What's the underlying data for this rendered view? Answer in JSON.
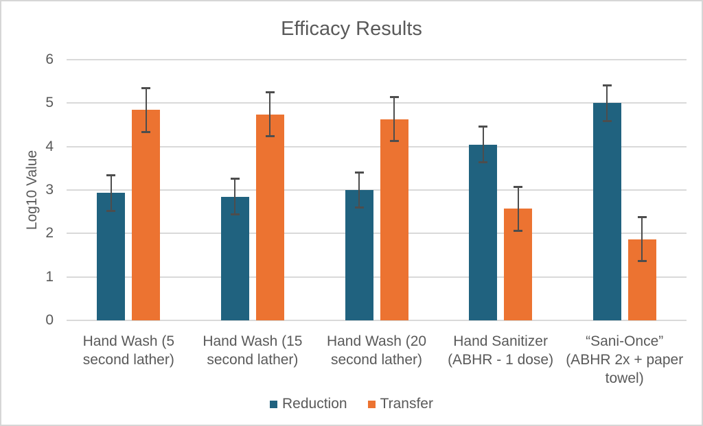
{
  "chart_data": {
    "type": "bar",
    "title": "Efficacy Results",
    "xlabel": "",
    "ylabel": "Log10 Value",
    "ylim": [
      0,
      6
    ],
    "yticks": [
      "0",
      "1",
      "2",
      "3",
      "4",
      "5",
      "6"
    ],
    "grid": true,
    "legend_position": "bottom-center",
    "categories": [
      "Hand Wash (5\nsecond lather)",
      "Hand Wash (15\nsecond lather)",
      "Hand Wash (20\nsecond lather)",
      "Hand Sanitizer\n(ABHR - 1 dose)",
      "“Sani-Once”\n(ABHR 2x + paper\ntowel)"
    ],
    "series": [
      {
        "name": "Reduction",
        "color": "#20627F",
        "values": [
          2.93,
          2.85,
          3.0,
          4.05,
          5.0
        ],
        "error_bars": [
          0.4,
          0.4,
          0.4,
          0.4,
          0.4
        ]
      },
      {
        "name": "Transfer",
        "color": "#EC7331",
        "values": [
          4.84,
          4.74,
          4.63,
          2.57,
          1.87
        ],
        "error_bars": [
          0.5,
          0.5,
          0.5,
          0.5,
          0.5
        ]
      }
    ],
    "colors": {
      "error_bar": "#4D4D4D",
      "gridline": "#D9D9D9",
      "text": "#595959",
      "border": "#D6D6D6",
      "background": "#FFFFFF"
    }
  }
}
